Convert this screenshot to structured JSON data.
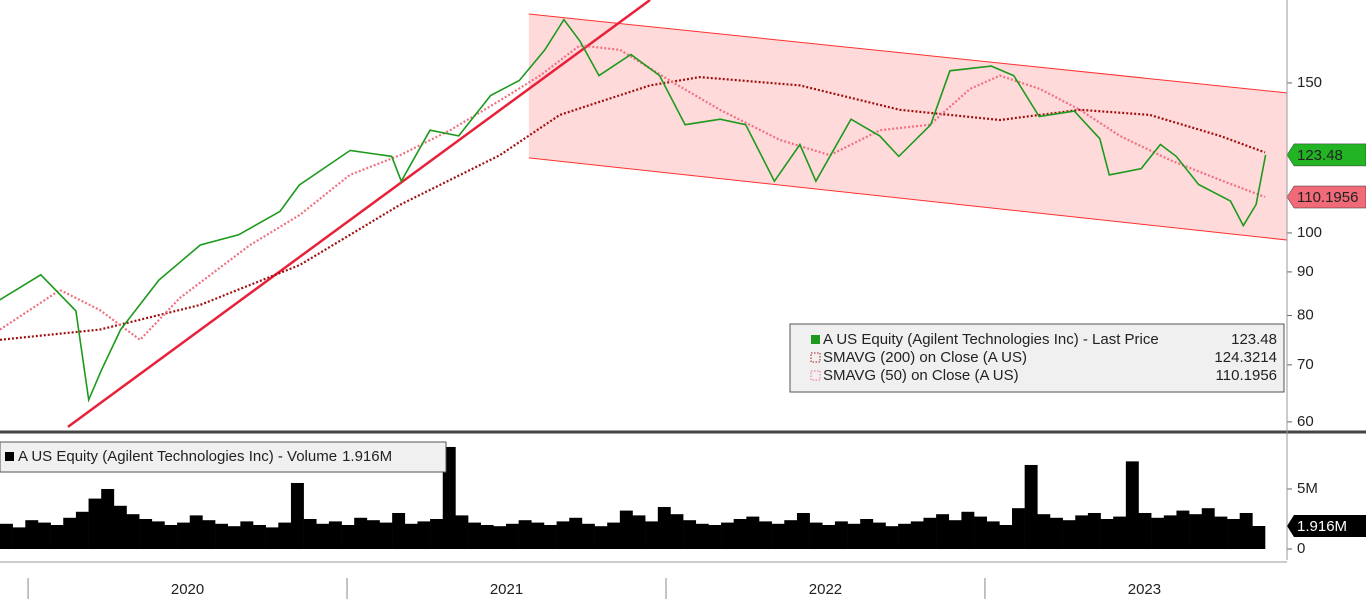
{
  "chart_data": [
    {
      "type": "line",
      "log": true,
      "xlim": [
        2019.912,
        2023.947
      ],
      "xticks": [
        2020,
        2021,
        2022,
        2023
      ],
      "ylim": [
        58.7,
        187.7
      ],
      "yticks": [
        60,
        70,
        80,
        90,
        100,
        150
      ],
      "channel": {
        "x": [
          2021.57,
          2023.947
        ],
        "upper": [
          180.7,
          146
        ],
        "lower": [
          122.5,
          98.1
        ],
        "color": "#ff3030"
      },
      "trendline": {
        "x": [
          2020.125,
          2021.95
        ],
        "y": [
          59.2,
          187.7
        ],
        "color": "#e8213a"
      },
      "series": [
        {
          "name": "A US Equity (Agilent Technologies Inc) - Last Price",
          "last": 123.48,
          "color": "#1d9a1d",
          "box_color": "#22b422",
          "x": [
            2019.91,
            2020.04,
            2020.15,
            2020.19,
            2020.23,
            2020.29,
            2020.41,
            2020.54,
            2020.66,
            2020.79,
            2020.85,
            2021.01,
            2021.14,
            2021.17,
            2021.26,
            2021.35,
            2021.45,
            2021.54,
            2021.62,
            2021.68,
            2021.73,
            2021.79,
            2021.89,
            2021.98,
            2022.06,
            2022.17,
            2022.25,
            2022.34,
            2022.42,
            2022.47,
            2022.58,
            2022.67,
            2022.73,
            2022.83,
            2022.89,
            2023.02,
            2023.09,
            2023.17,
            2023.28,
            2023.36,
            2023.39,
            2023.49,
            2023.55,
            2023.6,
            2023.67,
            2023.77,
            2023.81,
            2023.85,
            2023.88
          ],
          "values": [
            83.4,
            89.3,
            81,
            63.7,
            69,
            77,
            88,
            96.8,
            99.5,
            106,
            113.8,
            125,
            123,
            115,
            132,
            130,
            145,
            151,
            164,
            178,
            168,
            153,
            162,
            153,
            134,
            136,
            134,
            115,
            127,
            115,
            136,
            130,
            123,
            134,
            155,
            157,
            153,
            137,
            139,
            129,
            117,
            119,
            127,
            123,
            114,
            109,
            102,
            108,
            123.48
          ]
        },
        {
          "name": "SMAVG (200)  on Close (A US)",
          "last": 124.3214,
          "color": "#a01010",
          "x": [
            2019.912,
            2020.225,
            2020.539,
            2020.852,
            2021.166,
            2021.479,
            2021.667,
            2021.95,
            2022.106,
            2022.42,
            2022.733,
            2023.047,
            2023.298,
            2023.517,
            2023.737,
            2023.878
          ],
          "values": [
            74.9,
            77,
            82.3,
            91.7,
            107.9,
            123.4,
            137.6,
            149,
            152.4,
            149,
            139.5,
            135.7,
            139.5,
            137.6,
            130,
            124.3214
          ]
        },
        {
          "name": "SMAVG (50)  on Close (A US)",
          "last": 110.1956,
          "color": "#f07080",
          "box_color": "#f06a78",
          "x": [
            2019.912,
            2020.1,
            2020.225,
            2020.351,
            2020.476,
            2020.696,
            2020.852,
            2021.009,
            2021.166,
            2021.323,
            2021.479,
            2021.605,
            2021.73,
            2021.856,
            2022.012,
            2022.169,
            2022.357,
            2022.514,
            2022.671,
            2022.827,
            2022.953,
            2023.047,
            2023.172,
            2023.298,
            2023.423,
            2023.58,
            2023.737,
            2023.878
          ],
          "values": [
            77,
            85.7,
            81.2,
            74.9,
            83.9,
            96.8,
            105,
            117,
            123.4,
            132,
            143,
            153,
            166,
            164,
            151,
            139.5,
            128.6,
            123.4,
            132,
            134,
            147.6,
            153,
            147.6,
            139.5,
            130,
            121.8,
            115.4,
            110.1956
          ]
        }
      ]
    },
    {
      "type": "bar",
      "name": "A US Equity (Agilent Technologies Inc) - Volume",
      "last": {
        "value": 1.916,
        "label": "1.916M"
      },
      "color": "#000000",
      "ylim": [
        0,
        9.33
      ],
      "yticks": [
        0,
        {
          "value": 5,
          "label": "5M"
        }
      ],
      "values": [
        2.1,
        1.8,
        2.4,
        2.2,
        2.0,
        2.6,
        3.1,
        4.2,
        5.0,
        3.6,
        2.9,
        2.5,
        2.3,
        2.0,
        2.2,
        2.8,
        2.4,
        2.1,
        1.9,
        2.3,
        2.0,
        1.8,
        2.2,
        5.5,
        2.5,
        2.1,
        2.3,
        2.0,
        2.6,
        2.4,
        2.2,
        3.0,
        2.1,
        2.3,
        2.5,
        8.5,
        2.8,
        2.2,
        2.0,
        1.9,
        2.1,
        2.4,
        2.2,
        2.0,
        2.3,
        2.6,
        2.1,
        1.9,
        2.2,
        3.2,
        2.8,
        2.3,
        3.5,
        2.9,
        2.4,
        2.1,
        2.0,
        2.2,
        2.5,
        2.7,
        2.3,
        2.1,
        2.4,
        3.0,
        2.2,
        2.0,
        2.3,
        2.1,
        2.5,
        2.2,
        1.9,
        2.1,
        2.3,
        2.6,
        2.9,
        2.4,
        3.1,
        2.7,
        2.3,
        2.0,
        3.4,
        7.0,
        2.9,
        2.6,
        2.4,
        2.8,
        3.0,
        2.5,
        2.7,
        7.3,
        3.0,
        2.6,
        2.8,
        3.2,
        2.9,
        3.4,
        2.7,
        2.5,
        3.0,
        1.916
      ]
    }
  ]
}
